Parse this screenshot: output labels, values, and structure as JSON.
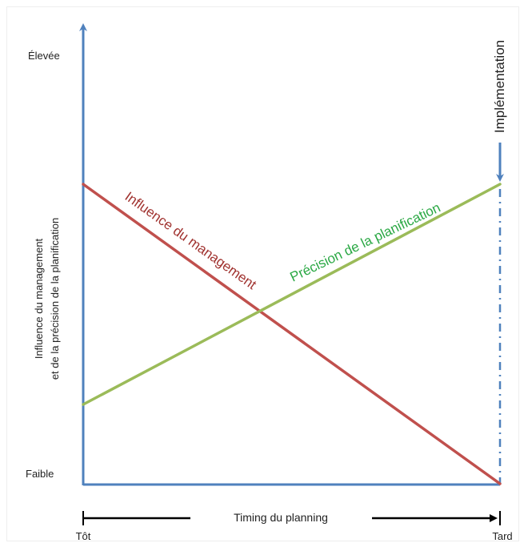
{
  "chart_data": {
    "type": "line",
    "title": "",
    "xlabel": "Timing du planning",
    "ylabel_lines": [
      "Influence du management",
      "et de la précision de la planification"
    ],
    "x_tick_labels": {
      "start": "Tôt",
      "end": "Tard"
    },
    "y_tick_labels": {
      "high": "Élevée",
      "low": "Faible"
    },
    "xlim": [
      0,
      1
    ],
    "ylim": [
      0,
      1
    ],
    "series": [
      {
        "name": "Influence du management",
        "x": [
          0,
          1
        ],
        "y": [
          0.68,
          0.0
        ],
        "color": "#c0504d"
      },
      {
        "name": "Précision de la planification",
        "x": [
          0,
          1
        ],
        "y": [
          0.18,
          0.68
        ],
        "color": "#9bbb59"
      }
    ],
    "annotations": [
      {
        "text": "Implémentation",
        "x": 1.0
      }
    ],
    "axis_color": "#4f81bd",
    "grid": false
  }
}
